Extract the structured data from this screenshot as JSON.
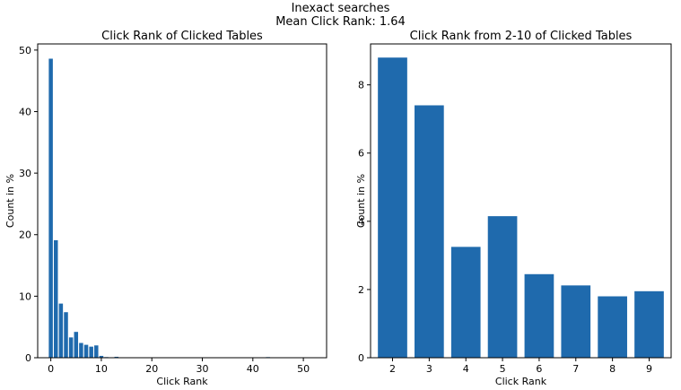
{
  "suptitle": "Inexact searches",
  "subtitle": "Mean Click Rank: 1.64",
  "chart_data": [
    {
      "type": "bar",
      "title": "Click Rank of Clicked Tables",
      "xlabel": "Click Rank",
      "ylabel": "Count in %",
      "xlim": [
        -2.6,
        54.6
      ],
      "ylim": [
        0,
        51
      ],
      "xticks": [
        0,
        10,
        20,
        30,
        40,
        50
      ],
      "yticks": [
        0,
        10,
        20,
        30,
        40,
        50
      ],
      "x": [
        0,
        1,
        2,
        3,
        4,
        5,
        6,
        7,
        8,
        9,
        10,
        11,
        13,
        43,
        52
      ],
      "values": [
        48.6,
        19.1,
        8.8,
        7.4,
        3.3,
        4.2,
        2.4,
        2.1,
        1.8,
        2.0,
        0.3,
        0.1,
        0.15,
        0.1,
        0.05
      ],
      "bar_width": 0.8
    },
    {
      "type": "bar",
      "title": "Click Rank from 2-10 of Clicked Tables",
      "xlabel": "Click Rank",
      "ylabel": "Count in %",
      "xlim": [
        1.4,
        9.6
      ],
      "ylim": [
        0,
        9.2
      ],
      "xticks": [
        2,
        3,
        4,
        5,
        6,
        7,
        8,
        9
      ],
      "yticks": [
        0,
        2,
        4,
        6,
        8
      ],
      "x": [
        2,
        3,
        4,
        5,
        6,
        7,
        8,
        9
      ],
      "values": [
        8.8,
        7.4,
        3.25,
        4.15,
        2.45,
        2.12,
        1.8,
        1.95
      ],
      "bar_width": 0.8
    }
  ]
}
